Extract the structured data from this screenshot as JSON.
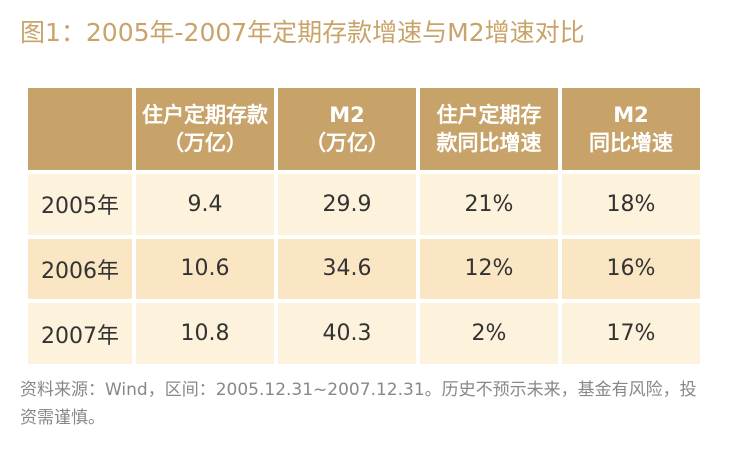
{
  "title": "图1：2005年-2007年定期存款增速与M2增速对比",
  "table": {
    "headers": [
      {
        "line1": "",
        "line2": ""
      },
      {
        "line1": "住户定期存款",
        "line2": "（万亿）"
      },
      {
        "line1": "M2",
        "line2": "（万亿）"
      },
      {
        "line1": "住户定期存",
        "line2": "款同比增速"
      },
      {
        "line1": "M2",
        "line2": "同比增速"
      }
    ],
    "rows": [
      [
        "2005年",
        "9.4",
        "29.9",
        "21%",
        "18%"
      ],
      [
        "2006年",
        "10.6",
        "34.6",
        "12%",
        "16%"
      ],
      [
        "2007年",
        "10.8",
        "40.3",
        "2%",
        "17%"
      ]
    ]
  },
  "footnote": "资料来源：Wind，区间：2005.12.31~2007.12.31。历史不预示未来，基金有风险，投资需谨慎。",
  "colors": {
    "title": "#c9a46a",
    "header_bg": "#c7a36a",
    "row_light": "#fdf2dc",
    "row_dark": "#fbe6c4",
    "footnote": "#888888"
  }
}
